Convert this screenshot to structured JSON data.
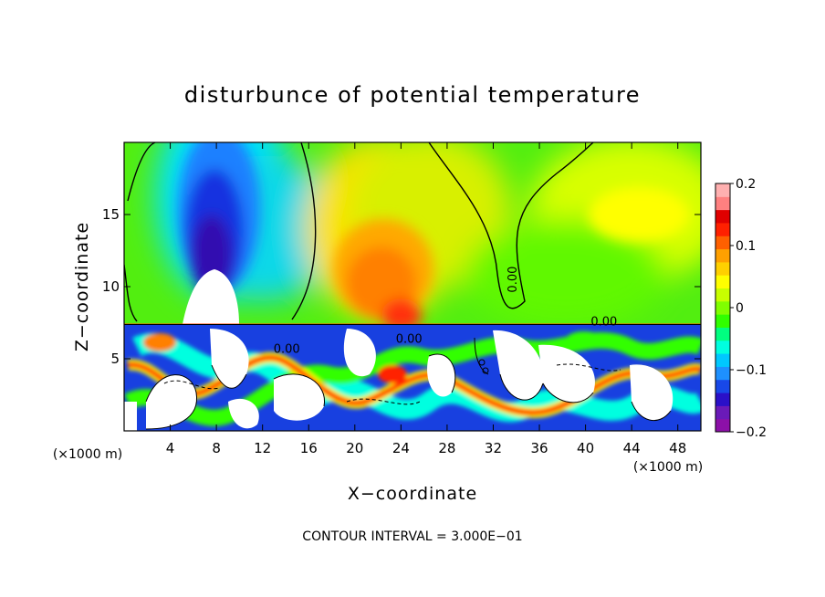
{
  "chart_data": {
    "type": "heatmap",
    "title": "disturbunce of potential temperature",
    "xlabel": "X−coordinate",
    "ylabel": "Z−coordinate",
    "x_unit": "(×1000 m)",
    "z_unit": "(×1000 m)",
    "footer": "CONTOUR INTERVAL = 3.000E−01",
    "xlim": [
      0,
      50
    ],
    "ylim": [
      0,
      20
    ],
    "x_ticks": [
      4,
      8,
      12,
      16,
      20,
      24,
      28,
      32,
      36,
      40,
      44,
      48
    ],
    "y_ticks": [
      5,
      10,
      15
    ],
    "colorbar": {
      "range": [
        -0.2,
        0.2
      ],
      "tick_labels": [
        "0.2",
        "0.1",
        "0",
        "−0.1",
        "−0.2"
      ],
      "tick_values": [
        0.2,
        0.1,
        0,
        -0.1,
        -0.2
      ],
      "colors": [
        "#8c10a8",
        "#6a1ab8",
        "#2a10c8",
        "#1848e8",
        "#1e90ff",
        "#00c8ff",
        "#00ffe0",
        "#00ff80",
        "#30ff00",
        "#80ff00",
        "#c8ff00",
        "#ffff00",
        "#ffd000",
        "#ffa000",
        "#ff6000",
        "#ff2000",
        "#e00000",
        "#ff8080",
        "#ffb0b0"
      ]
    },
    "contour_labels": [
      {
        "text": "0.00",
        "x": 34.0,
        "z": 10.5,
        "rotate": -90
      },
      {
        "text": "0.00",
        "x": 41.6,
        "z": 7.3,
        "rotate": 0
      },
      {
        "text": "0.00",
        "x": 24.7,
        "z": 6.1,
        "rotate": 0
      },
      {
        "text": "0.00",
        "x": 14.1,
        "z": 5.4,
        "rotate": 0
      }
    ]
  }
}
